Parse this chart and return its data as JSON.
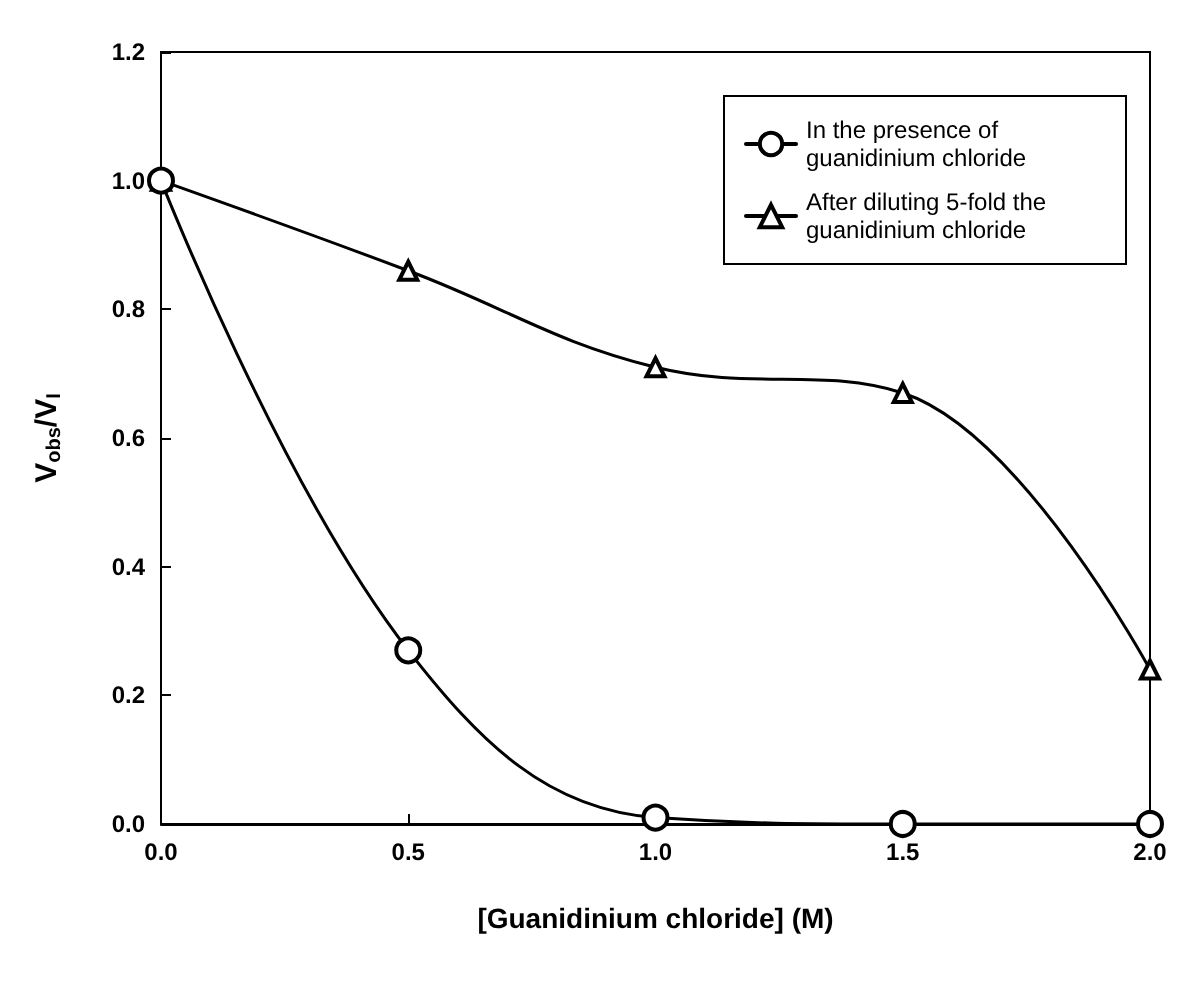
{
  "chart_data": {
    "type": "line",
    "xlabel": "[Guanidinium chloride] (M)",
    "ylabel": "V$_{obs}$/V$_{I}$",
    "x": [
      0,
      0.5,
      1.0,
      1.5,
      2.0
    ],
    "series": [
      {
        "name": "In the presence of guanidinium chloride",
        "color": "#000000",
        "marker": "circle",
        "values": [
          1.0,
          0.27,
          0.01,
          0.0,
          0.0
        ]
      },
      {
        "name": "After diluting 5-fold the guanidinium chloride",
        "color": "#000000",
        "marker": "triangle",
        "values": [
          1.0,
          0.86,
          0.71,
          0.67,
          0.24
        ]
      }
    ],
    "xlim": [
      0,
      2.0
    ],
    "xticks": [
      {
        "value": 0,
        "label": "0.0"
      },
      {
        "value": 0.5,
        "label": "0.5"
      },
      {
        "value": 1.0,
        "label": "1.0"
      },
      {
        "value": 1.5,
        "label": "1.5"
      },
      {
        "value": 2.0,
        "label": "2.0"
      }
    ],
    "ylim": [
      0,
      1.2
    ],
    "yticks": [
      {
        "value": 0,
        "label": "0.0"
      },
      {
        "value": 0.2,
        "label": "0.2"
      },
      {
        "value": 0.4,
        "label": "0.4"
      },
      {
        "value": 0.6,
        "label": "0.6"
      },
      {
        "value": 0.8,
        "label": "0.8"
      },
      {
        "value": 1.0,
        "label": "1.0"
      },
      {
        "value": 1.2,
        "label": "1.2"
      }
    ],
    "grid": false,
    "legend": "top right",
    "line_style": "solid"
  }
}
